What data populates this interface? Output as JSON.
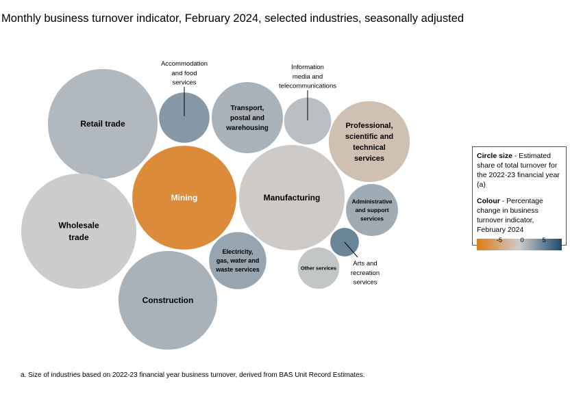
{
  "chart_data": {
    "type": "bubble",
    "title": "Monthly business turnover indicator, February 2024, selected industries, seasonally adjusted",
    "size_measure": "Estimated share of total turnover for the 2022-23 financial year (a)",
    "colour_measure": "Percentage change in business turnover indicator, February 2024",
    "colour_scale": {
      "min": -10,
      "max": 10,
      "colors": [
        "#e07b17",
        "#cccccc",
        "#1c4a6e"
      ],
      "ticks": [
        "-5",
        "0",
        "5"
      ]
    },
    "series": [
      {
        "name": "Retail trade",
        "label_lines": [
          "Retail trade"
        ],
        "size": 14.7,
        "change": 1.5
      },
      {
        "name": "Accommodation and food services",
        "label_lines": [
          "Accommodation",
          "and food",
          "services"
        ],
        "size": 3.1,
        "change": 4.0
      },
      {
        "name": "Transport, postal and warehousing",
        "label_lines": [
          "Transport,",
          "postal and",
          "warehousing"
        ],
        "size": 6.2,
        "change": 2.0
      },
      {
        "name": "Information media and telecommunications",
        "label_lines": [
          "Information",
          "media and",
          "telecommunications"
        ],
        "size": 2.7,
        "change": 1.0
      },
      {
        "name": "Professional, scientific and technical services",
        "label_lines": [
          "Professional,",
          "scientific and",
          "technical",
          "services"
        ],
        "size": 8.0,
        "change": -1.5
      },
      {
        "name": "Mining",
        "label_lines": [
          "Mining"
        ],
        "size": 13.2,
        "change": -8.0
      },
      {
        "name": "Manufacturing",
        "label_lines": [
          "Manufacturing"
        ],
        "size": 13.6,
        "change": -0.3
      },
      {
        "name": "Wholesale trade",
        "label_lines": [
          "Wholesale",
          "trade"
        ],
        "size": 16.2,
        "change": 0.0
      },
      {
        "name": "Administrative and support services",
        "label_lines": [
          "Administrative",
          "and support",
          "services"
        ],
        "size": 3.3,
        "change": 2.5
      },
      {
        "name": "Electricity, gas, water and waste services",
        "label_lines": [
          "Electricity,",
          "gas, water and",
          "waste services"
        ],
        "size": 4.0,
        "change": 3.0
      },
      {
        "name": "Arts and recreation services",
        "label_lines": [
          "Arts and",
          "recreation",
          "services"
        ],
        "size": 1.0,
        "change": 5.5
      },
      {
        "name": "Other services",
        "label_lines": [
          "Other services"
        ],
        "size": 2.1,
        "change": 0.5
      },
      {
        "name": "Construction",
        "label_lines": [
          "Construction"
        ],
        "size": 11.9,
        "change": 2.0
      }
    ]
  },
  "legend": {
    "size_heading": "Circle size",
    "size_text": " - Estimated share of total turnover for the 2022-23 financial year (a)",
    "colour_heading": "Colour",
    "colour_text": " - Percentage change in business turnover indicator, February 2024"
  },
  "footnote": "a. Size of industries based on 2022-23 financial year business turnover, derived from BAS Unit Record Estimates."
}
